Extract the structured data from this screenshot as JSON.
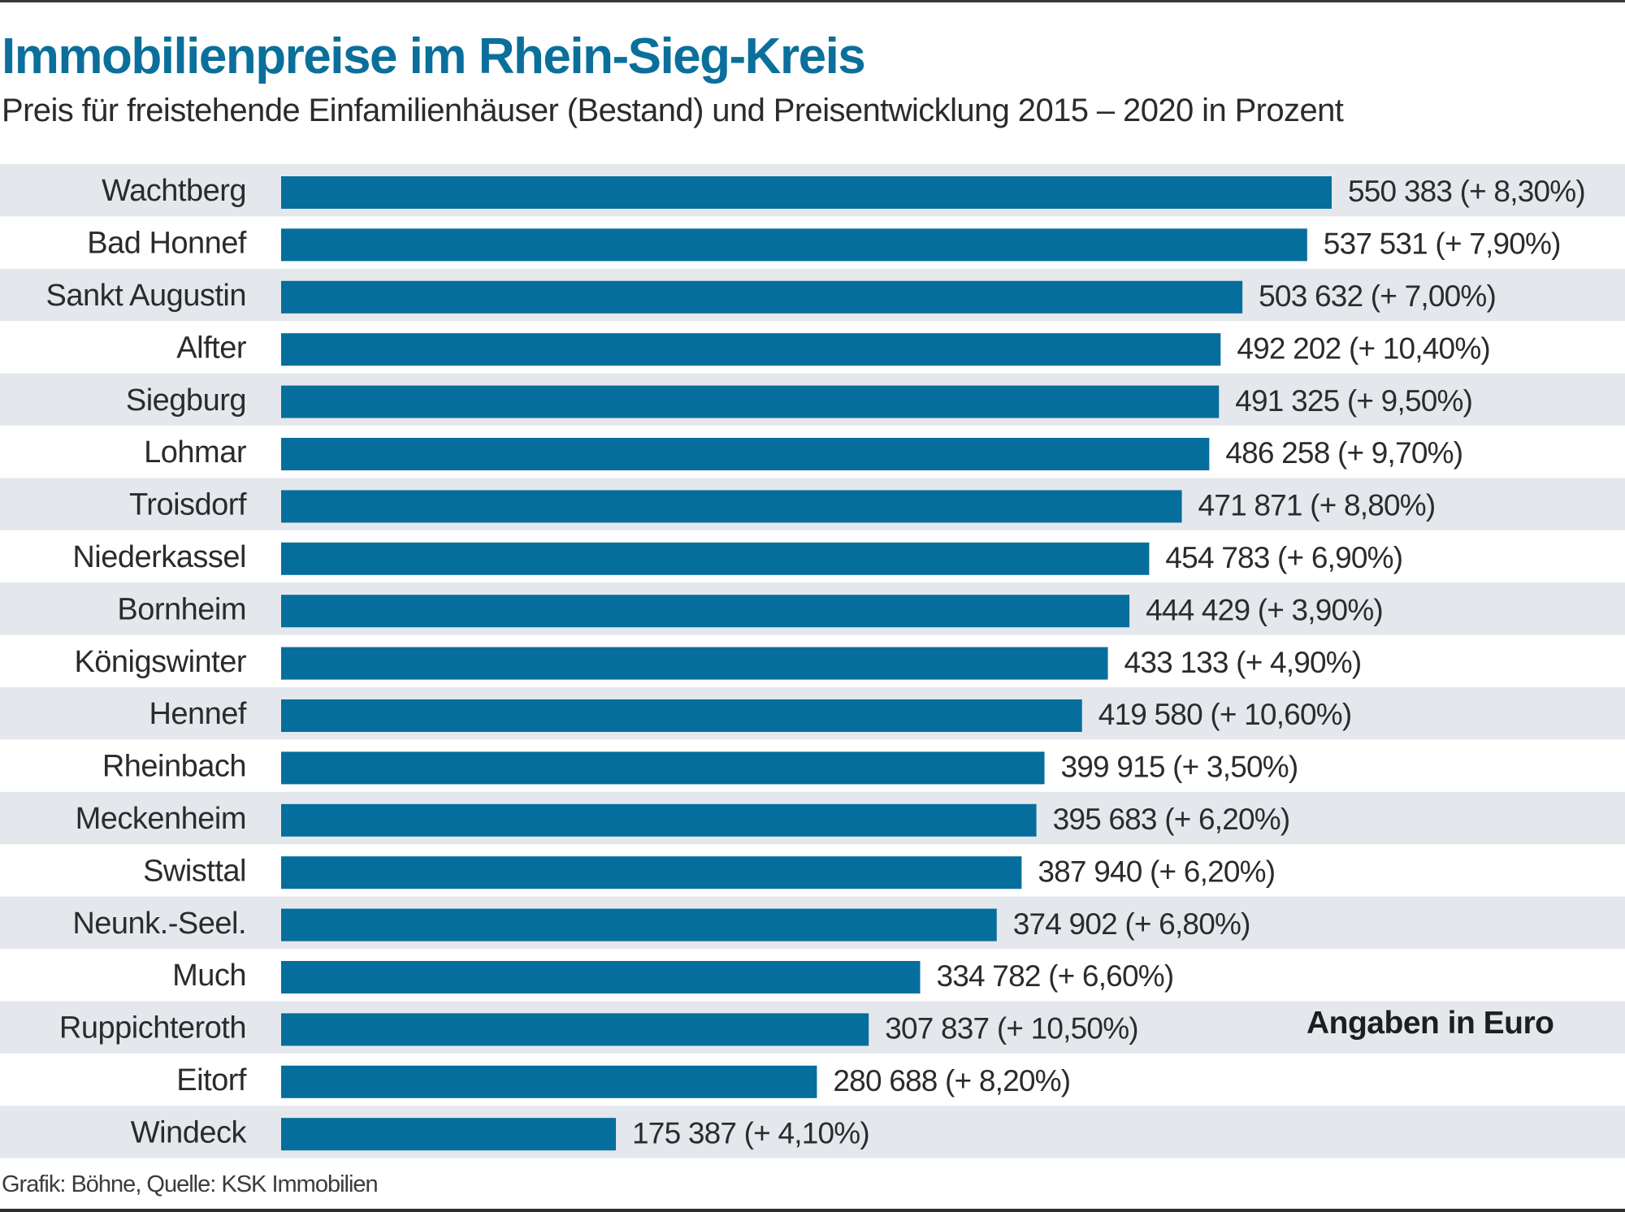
{
  "header": {
    "title": "Immobilienpreise im Rhein-Sieg-Kreis",
    "subtitle": "Preis für freistehende Einfamilienhäuser (Bestand) und Preisentwicklung 2015 – 2020 in Prozent"
  },
  "note": "Angaben in Euro",
  "footer": "Grafik: Böhne, Quelle: KSK Immobilien",
  "colors": {
    "bar": "#066e9c",
    "band": "#e4e8ec",
    "title": "#0b6f9b",
    "text": "#2b2b2b"
  },
  "chart_data": {
    "type": "bar",
    "orientation": "horizontal",
    "title": "Immobilienpreise im Rhein-Sieg-Kreis",
    "subtitle": "Preis für freistehende Einfamilienhäuser (Bestand) und Preisentwicklung 2015 – 2020 in Prozent",
    "xlabel": "",
    "ylabel": "",
    "unit": "Euro",
    "xlim": [
      0,
      550383
    ],
    "grid": false,
    "legend": "none",
    "categories": [
      "Wachtberg",
      "Bad Honnef",
      "Sankt Augustin",
      "Alfter",
      "Siegburg",
      "Lohmar",
      "Troisdorf",
      "Niederkassel",
      "Bornheim",
      "Königswinter",
      "Hennef",
      "Rheinbach",
      "Meckenheim",
      "Swisttal",
      "Neunk.-Seel.",
      "Much",
      "Ruppichteroth",
      "Eitorf",
      "Windeck"
    ],
    "values": [
      550383,
      537531,
      503632,
      492202,
      491325,
      486258,
      471871,
      454783,
      444429,
      433133,
      419580,
      399915,
      395683,
      387940,
      374902,
      334782,
      307837,
      280688,
      175387
    ],
    "change_percent": [
      8.3,
      7.9,
      7.0,
      10.4,
      9.5,
      9.7,
      8.8,
      6.9,
      3.9,
      4.9,
      10.6,
      3.5,
      6.2,
      6.2,
      6.8,
      6.6,
      10.5,
      8.2,
      4.1
    ],
    "data_labels": [
      "550 383 (+ 8,30%)",
      "537 531 (+ 7,90%)",
      "503 632 (+ 7,00%)",
      "492 202 (+ 10,40%)",
      "491 325 (+ 9,50%)",
      "486 258 (+ 9,70%)",
      "471 871 (+ 8,80%)",
      "454 783 (+ 6,90%)",
      "444 429 (+ 3,90%)",
      "433 133 (+ 4,90%)",
      "419 580 (+ 10,60%)",
      "399 915 (+ 3,50%)",
      "395 683 (+ 6,20%)",
      "387 940 (+ 6,20%)",
      "374 902 (+ 6,80%)",
      "334 782 (+ 6,60%)",
      "307 837 (+ 10,50%)",
      "280 688 (+ 8,20%)",
      "175 387 (+ 4,10%)"
    ],
    "annotations": [
      "Angaben in Euro"
    ]
  }
}
